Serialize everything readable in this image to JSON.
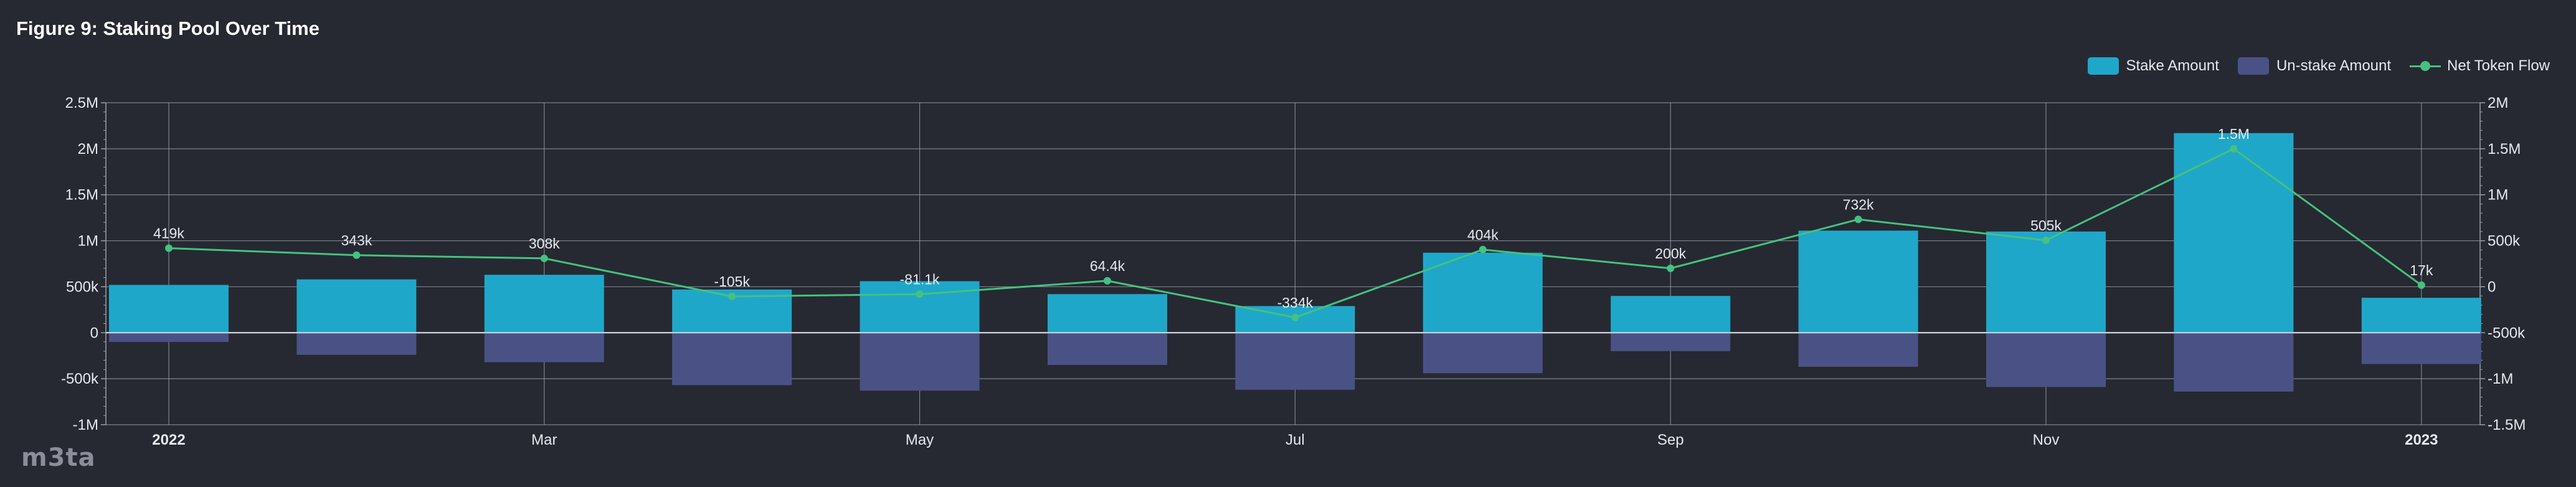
{
  "chart_data": {
    "type": "bar",
    "title": "Figure 9: Staking Pool Over Time",
    "x": [
      "2022-01",
      "2022-02",
      "2022-03",
      "2022-04",
      "2022-05",
      "2022-06",
      "2022-07",
      "2022-08",
      "2022-09",
      "2022-10",
      "2022-11",
      "2022-12",
      "2023-01"
    ],
    "x_tick_labels": [
      {
        "x": "2022-01",
        "label": "2022",
        "bold": true
      },
      {
        "x": "2022-03",
        "label": "Mar",
        "bold": false
      },
      {
        "x": "2022-05",
        "label": "May",
        "bold": false
      },
      {
        "x": "2022-07",
        "label": "Jul",
        "bold": false
      },
      {
        "x": "2022-09",
        "label": "Sep",
        "bold": false
      },
      {
        "x": "2022-11",
        "label": "Nov",
        "bold": false
      },
      {
        "x": "2023-01",
        "label": "2023",
        "bold": true
      }
    ],
    "series": [
      {
        "name": "Stake Amount",
        "kind": "bar",
        "axis": "left",
        "values": [
          520000,
          580000,
          630000,
          470000,
          560000,
          420000,
          290000,
          870000,
          400000,
          1110000,
          1100000,
          2170000,
          380000
        ]
      },
      {
        "name": "Un-stake Amount",
        "kind": "bar",
        "axis": "left",
        "values": [
          -100000,
          -240000,
          -320000,
          -570000,
          -630000,
          -350000,
          -620000,
          -440000,
          -200000,
          -370000,
          -590000,
          -640000,
          -340000
        ]
      },
      {
        "name": "Net Token Flow",
        "kind": "line",
        "axis": "right",
        "values": [
          419000,
          343000,
          308000,
          -105000,
          -81100,
          64400,
          -334000,
          404000,
          200000,
          732000,
          505000,
          1500000,
          17000
        ],
        "labels": [
          "419k",
          "343k",
          "308k",
          "-105k",
          "-81.1k",
          "64.4k",
          "-334k",
          "404k",
          "200k",
          "732k",
          "505k",
          "1.5M",
          "17k"
        ]
      }
    ],
    "y_left": {
      "ylim": [
        -1000000,
        2500000
      ],
      "ticks": [
        -1000000,
        -500000,
        0,
        500000,
        1000000,
        1500000,
        2000000,
        2500000
      ],
      "tick_labels": [
        "-1M",
        "-500k",
        "0",
        "500k",
        "1M",
        "1.5M",
        "2M",
        "2.5M"
      ]
    },
    "y_right": {
      "ylim": [
        -1500000,
        2000000
      ],
      "ticks": [
        -1500000,
        -1000000,
        -500000,
        0,
        500000,
        1000000,
        1500000,
        2000000
      ],
      "tick_labels": [
        "-1.5M",
        "-1M",
        "-500k",
        "0",
        "500k",
        "1M",
        "1.5M",
        "2M"
      ]
    },
    "grid": true,
    "legend_position": "top-right",
    "colors": {
      "stake": "#1fa7c9",
      "unstake": "#4a5285",
      "net": "#46c17f",
      "grid": "#9aa0ab",
      "background": "#262932"
    }
  },
  "legend": {
    "items": [
      {
        "label": "Stake Amount",
        "color": "#1fa7c9",
        "shape": "box"
      },
      {
        "label": "Un-stake Amount",
        "color": "#4a5285",
        "shape": "box"
      },
      {
        "label": "Net Token Flow",
        "color": "#46c17f",
        "shape": "line"
      }
    ]
  },
  "logo": {
    "text": "m3ta"
  }
}
